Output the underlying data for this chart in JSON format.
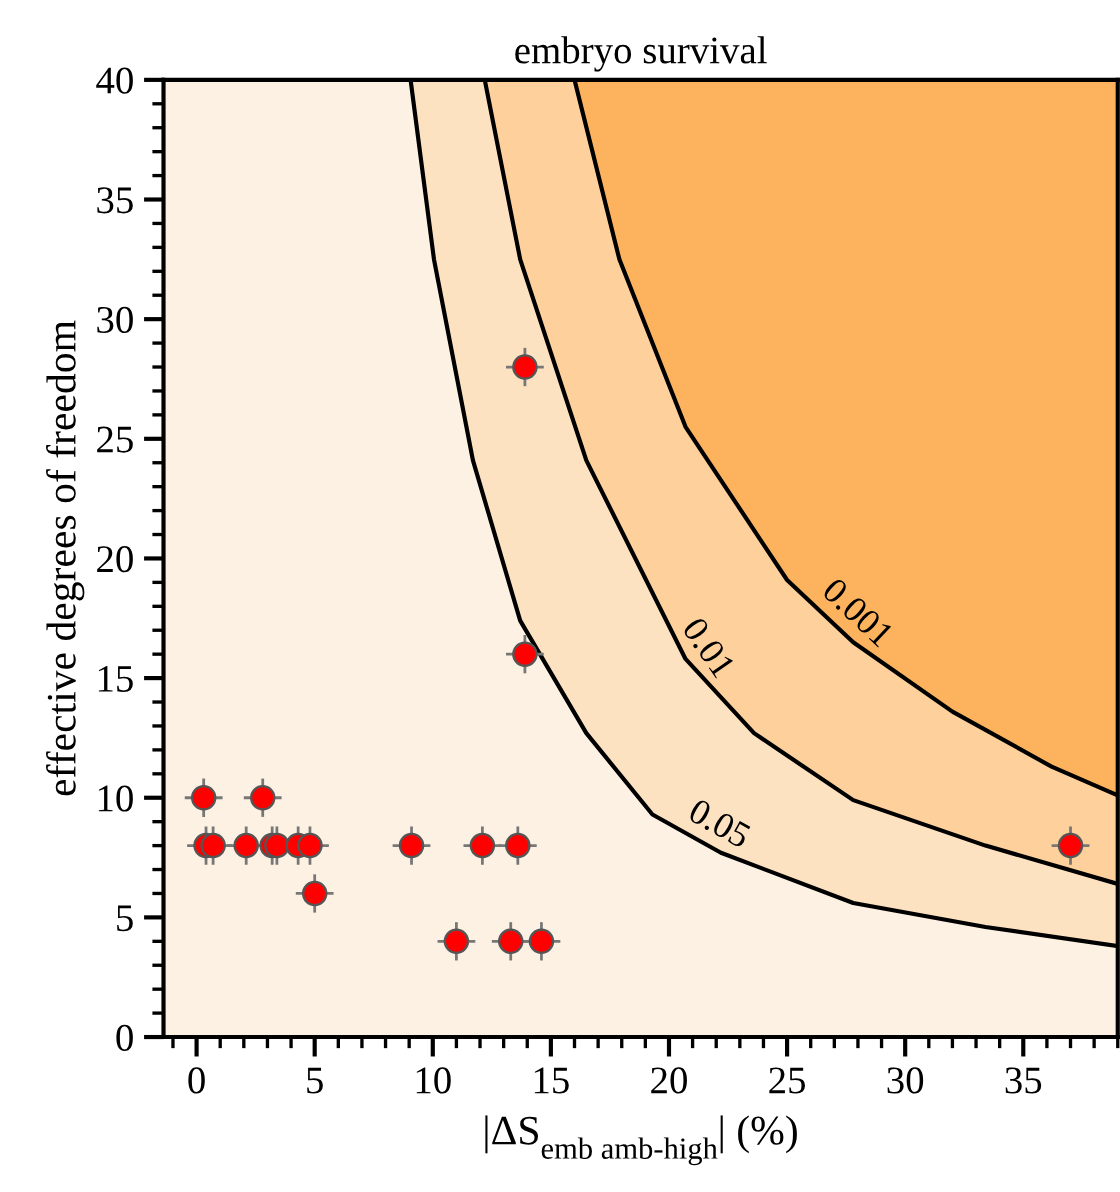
{
  "chart_data": {
    "type": "scatter",
    "title": "embryo survival",
    "xlabel": "|ΔS$_{emb amb-high}$| (%)",
    "ylabel": "effective degrees of freedom",
    "xlim": [
      -1.4,
      39
    ],
    "xticks": [
      0,
      5,
      10,
      15,
      20,
      25,
      30,
      35
    ],
    "ylim": [
      0,
      40
    ],
    "yticks": [
      0,
      5,
      10,
      15,
      20,
      25,
      30,
      35,
      40
    ],
    "grid": false,
    "series": [
      {
        "type": "line",
        "color": "#000000",
        "x": [
          9.06,
          10.05,
          11.7,
          13.7,
          16.5,
          19.3,
          22.2,
          27.8,
          33.4,
          39
        ],
        "values": [
          40,
          32.5,
          24.1,
          17.4,
          12.7,
          9.3,
          7.7,
          5.6,
          4.6,
          3.8
        ]
      },
      {
        "type": "line",
        "color": "#000000",
        "x": [
          12.2,
          13.7,
          16.5,
          20.7,
          23.6,
          27.8,
          33.4,
          39
        ],
        "values": [
          40,
          32.5,
          24.1,
          15.8,
          12.7,
          9.9,
          8.0,
          6.4
        ]
      },
      {
        "type": "line",
        "color": "#000000",
        "x": [
          16.0,
          17.9,
          20.7,
          25.0,
          27.8,
          32.0,
          36.2,
          39
        ],
        "values": [
          40,
          32.5,
          25.5,
          19.1,
          16.5,
          13.6,
          11.3,
          10.1
        ]
      },
      {
        "marker": "circle",
        "color": "#ff0000",
        "x": [
          0.3,
          2.8,
          0.4,
          0.7,
          2.1,
          3.2,
          3.4,
          4.3,
          4.8,
          9.1,
          12.1,
          13.6,
          37.0,
          5.0,
          11.0,
          13.3,
          14.6,
          13.9,
          13.9
        ],
        "values": [
          10,
          10,
          8,
          8,
          8,
          8,
          8,
          8,
          8,
          8,
          8,
          8,
          8,
          6,
          4,
          4,
          4,
          16,
          28
        ],
        "errors": [
          0.8,
          0.8,
          0.8,
          0.8,
          0.8,
          0.8,
          0.8,
          0.8,
          0.8,
          0.8,
          0.8,
          0.8,
          0.8,
          0.8,
          0.8,
          0.8,
          0.8,
          0.8,
          0.8
        ],
        "xerrors": [
          0.8,
          0.8,
          0.8,
          0.8,
          0.8,
          0.8,
          0.8,
          0.8,
          0.8,
          0.8,
          0.8,
          0.8,
          0.8,
          0.8,
          0.8,
          0.8,
          0.8,
          0.8,
          0.8
        ]
      }
    ],
    "annotations": [
      "0.05",
      "0.01",
      "0.001"
    ]
  }
}
